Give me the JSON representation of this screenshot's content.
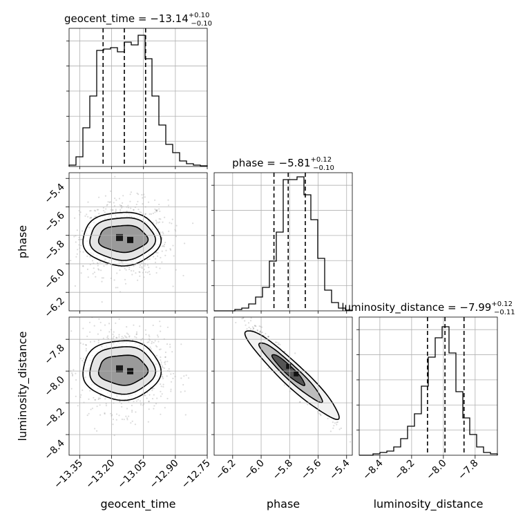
{
  "chart_data": {
    "type": "corner",
    "parameters": [
      "geocent_time",
      "phase",
      "luminosity_distance"
    ],
    "titles": [
      {
        "prefix": "geocent_time = ",
        "value": "−13.14",
        "plus": "+0.10",
        "minus": "−0.10"
      },
      {
        "prefix": "phase = ",
        "value": "−5.81",
        "plus": "+0.12",
        "minus": "−0.10"
      },
      {
        "prefix": "luminosity_distance = ",
        "value": "−7.99",
        "plus": "+0.12",
        "minus": "−0.11"
      }
    ],
    "ranges": [
      [
        -13.4,
        -12.75
      ],
      [
        -6.33,
        -5.36
      ],
      [
        -8.53,
        -7.66
      ]
    ],
    "ticks": [
      {
        "values": [
          -13.35,
          -13.2,
          -13.05,
          -12.9,
          -12.75
        ],
        "labels": [
          "−13.35",
          "−13.20",
          "−13.05",
          "−12.90",
          "−12.75"
        ]
      },
      {
        "values": [
          -6.2,
          -6.0,
          -5.8,
          -5.6,
          -5.4
        ],
        "labels": [
          "−6.2",
          "−6.0",
          "−5.8",
          "−5.6",
          "−5.4"
        ]
      },
      {
        "values": [
          -8.4,
          -8.2,
          -8.0,
          -7.8
        ],
        "labels": [
          "−8.4",
          "−8.2",
          "−8.0",
          "−7.8"
        ]
      }
    ],
    "quantiles": [
      [
        -13.24,
        -13.14,
        -13.04
      ],
      [
        -5.91,
        -5.81,
        -5.69
      ],
      [
        -8.1,
        -7.99,
        -7.87
      ]
    ],
    "histograms": [
      {
        "values": [
          0.01,
          0.07,
          0.28,
          0.51,
          0.84,
          0.85,
          0.86,
          0.83,
          0.9,
          0.88,
          0.95,
          0.78,
          0.51,
          0.3,
          0.16,
          0.1,
          0.04,
          0.02,
          0.01,
          0.005
        ]
      },
      {
        "values": [
          0.0,
          0.0,
          0.0,
          0.01,
          0.02,
          0.05,
          0.1,
          0.17,
          0.36,
          0.57,
          0.95,
          0.95,
          0.97,
          0.84,
          0.66,
          0.38,
          0.15,
          0.06,
          0.02,
          0.005
        ]
      },
      {
        "values": [
          0.0,
          0.0,
          0.01,
          0.02,
          0.03,
          0.06,
          0.12,
          0.21,
          0.3,
          0.5,
          0.71,
          0.85,
          0.93,
          0.74,
          0.46,
          0.27,
          0.15,
          0.06,
          0.02,
          0.01
        ]
      }
    ],
    "scatter_2d": [
      {
        "x_param": 0,
        "y_param": 1,
        "center": [
          -13.14,
          -5.82
        ],
        "sd": [
          0.085,
          0.11
        ],
        "corr": 0.0
      },
      {
        "x_param": 0,
        "y_param": 2,
        "center": [
          -13.14,
          -7.99
        ],
        "sd": [
          0.085,
          0.11
        ],
        "corr": 0.0
      },
      {
        "x_param": 1,
        "y_param": 2,
        "center": [
          -5.81,
          -7.99
        ],
        "sd": [
          0.11,
          0.11
        ],
        "corr": -0.95
      }
    ],
    "grid": true
  }
}
